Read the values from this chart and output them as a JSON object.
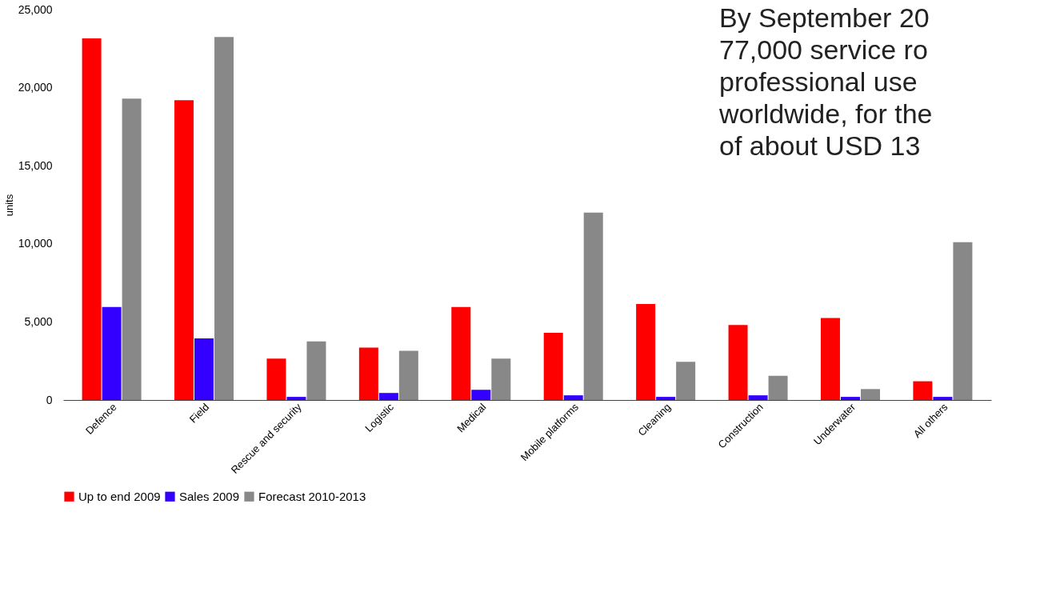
{
  "chart_data": {
    "type": "bar",
    "ylabel": "units",
    "categories": [
      "Defence",
      "Field",
      "Rescue and security",
      "Logistic",
      "Medical",
      "Mobile platforms",
      "Cleaning",
      "Construction",
      "Underwater",
      "All others"
    ],
    "series": [
      {
        "name": "Up to end 2009",
        "color": "#ff0000",
        "values": [
          23150,
          19200,
          2650,
          3350,
          5950,
          4300,
          6150,
          4800,
          5250,
          1200
        ]
      },
      {
        "name": "Sales 2009",
        "color": "#3300ff",
        "values": [
          5950,
          3950,
          200,
          450,
          650,
          300,
          200,
          300,
          200,
          200
        ]
      },
      {
        "name": "Forecast 2010-2013",
        "color": "#888888",
        "values": [
          19300,
          23250,
          3750,
          3150,
          2650,
          12000,
          2450,
          1550,
          700,
          10100
        ]
      }
    ],
    "ylim": [
      0,
      25000
    ],
    "yticks": [
      0,
      {
        "value": 5000,
        "label": "5,000"
      },
      {
        "value": 10000,
        "label": "10,000"
      },
      {
        "value": 15000,
        "label": "15,000"
      },
      {
        "value": 20000,
        "label": "20,000"
      },
      {
        "value": 25000,
        "label": "25,000"
      }
    ],
    "grid": false,
    "legend": "bottom",
    "annotations": [
      "By September 20\n77,000 service ro\nprofessional use\nworldwide, for the\nof about USD 13"
    ]
  }
}
